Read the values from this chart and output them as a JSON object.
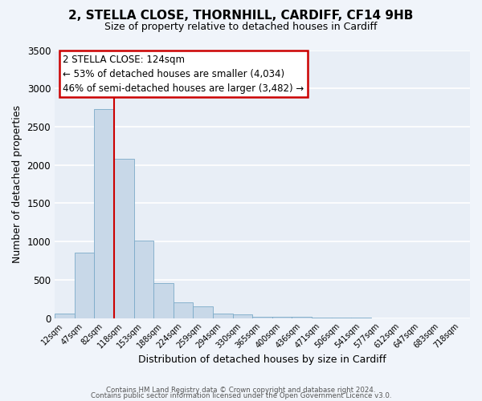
{
  "title": "2, STELLA CLOSE, THORNHILL, CARDIFF, CF14 9HB",
  "subtitle": "Size of property relative to detached houses in Cardiff",
  "xlabel": "Distribution of detached houses by size in Cardiff",
  "ylabel": "Number of detached properties",
  "bar_color": "#c8d8e8",
  "bar_edge_color": "#7baac8",
  "background_color": "#e8eef6",
  "fig_background": "#f0f4fa",
  "grid_color": "#ffffff",
  "categories": [
    "12sqm",
    "47sqm",
    "82sqm",
    "118sqm",
    "153sqm",
    "188sqm",
    "224sqm",
    "259sqm",
    "294sqm",
    "330sqm",
    "365sqm",
    "400sqm",
    "436sqm",
    "471sqm",
    "506sqm",
    "541sqm",
    "577sqm",
    "612sqm",
    "647sqm",
    "683sqm",
    "718sqm"
  ],
  "values": [
    55,
    850,
    2730,
    2080,
    1010,
    460,
    210,
    150,
    55,
    45,
    20,
    18,
    12,
    4,
    2,
    1,
    0,
    0,
    0,
    0,
    0
  ],
  "ylim": [
    0,
    3500
  ],
  "yticks": [
    0,
    500,
    1000,
    1500,
    2000,
    2500,
    3000,
    3500
  ],
  "marker_bin_index": 3,
  "marker_label": "2 STELLA CLOSE: 124sqm",
  "annotation_line1": "← 53% of detached houses are smaller (4,034)",
  "annotation_line2": "46% of semi-detached houses are larger (3,482) →",
  "annotation_box_facecolor": "#ffffff",
  "annotation_box_edgecolor": "#cc0000",
  "marker_line_color": "#cc0000",
  "footer1": "Contains HM Land Registry data © Crown copyright and database right 2024.",
  "footer2": "Contains public sector information licensed under the Open Government Licence v3.0."
}
